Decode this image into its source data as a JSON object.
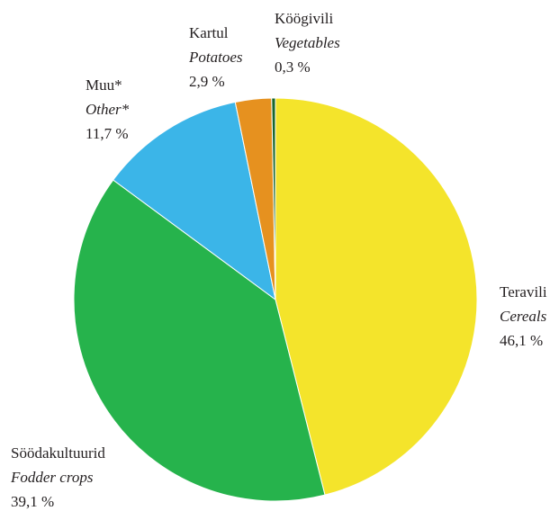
{
  "chart_data": {
    "type": "pie",
    "categories": [
      "Teravili",
      "Söödakultuurid",
      "Muu*",
      "Kartul",
      "Köögivili"
    ],
    "categories_en": [
      "Cereals",
      "Fodder crops",
      "Other*",
      "Potatoes",
      "Vegetables"
    ],
    "values": [
      46.1,
      39.1,
      11.7,
      2.9,
      0.3
    ],
    "value_labels": [
      "46,1 %",
      "39,1 %",
      "11,7 %",
      "2,9 %",
      "0,3 %"
    ],
    "colors": [
      "#f4e42b",
      "#26b34c",
      "#3bb5e8",
      "#e6911f",
      "#17652d"
    ]
  }
}
